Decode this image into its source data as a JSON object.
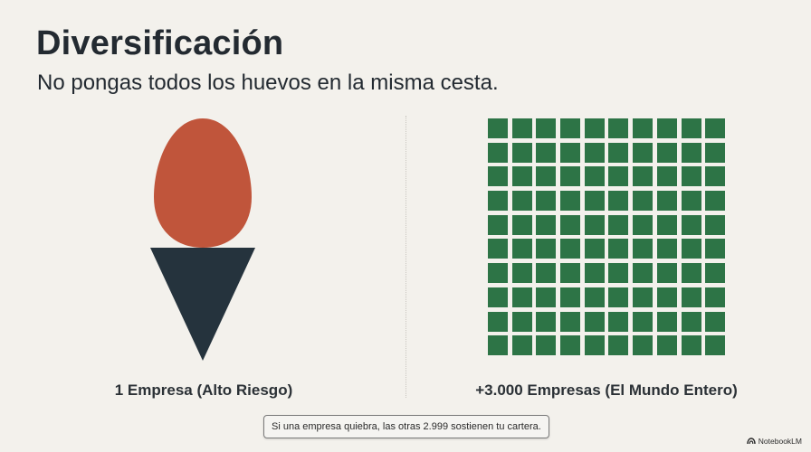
{
  "header": {
    "title": "Diversificación",
    "subtitle": "No pongas todos los huevos en la misma cesta."
  },
  "left_panel": {
    "icon": "egg-on-cone-icon",
    "label": "1 Empresa (Alto Riesgo)",
    "colors": {
      "egg": "#c0553b",
      "cone": "#25333d"
    }
  },
  "right_panel": {
    "icon": "grid-of-squares-icon",
    "grid_rows": 10,
    "grid_cols": 10,
    "label": "+3.000 Empresas (El Mundo Entero)",
    "colors": {
      "square": "#2d7446"
    }
  },
  "caption": "Si una empresa quiebra, las otras 2.999 sostienen tu cartera.",
  "brand": {
    "icon": "notebooklm-logo-icon",
    "label": "NotebookLM"
  },
  "colors": {
    "background": "#f3f1ec",
    "text": "#232a31"
  }
}
